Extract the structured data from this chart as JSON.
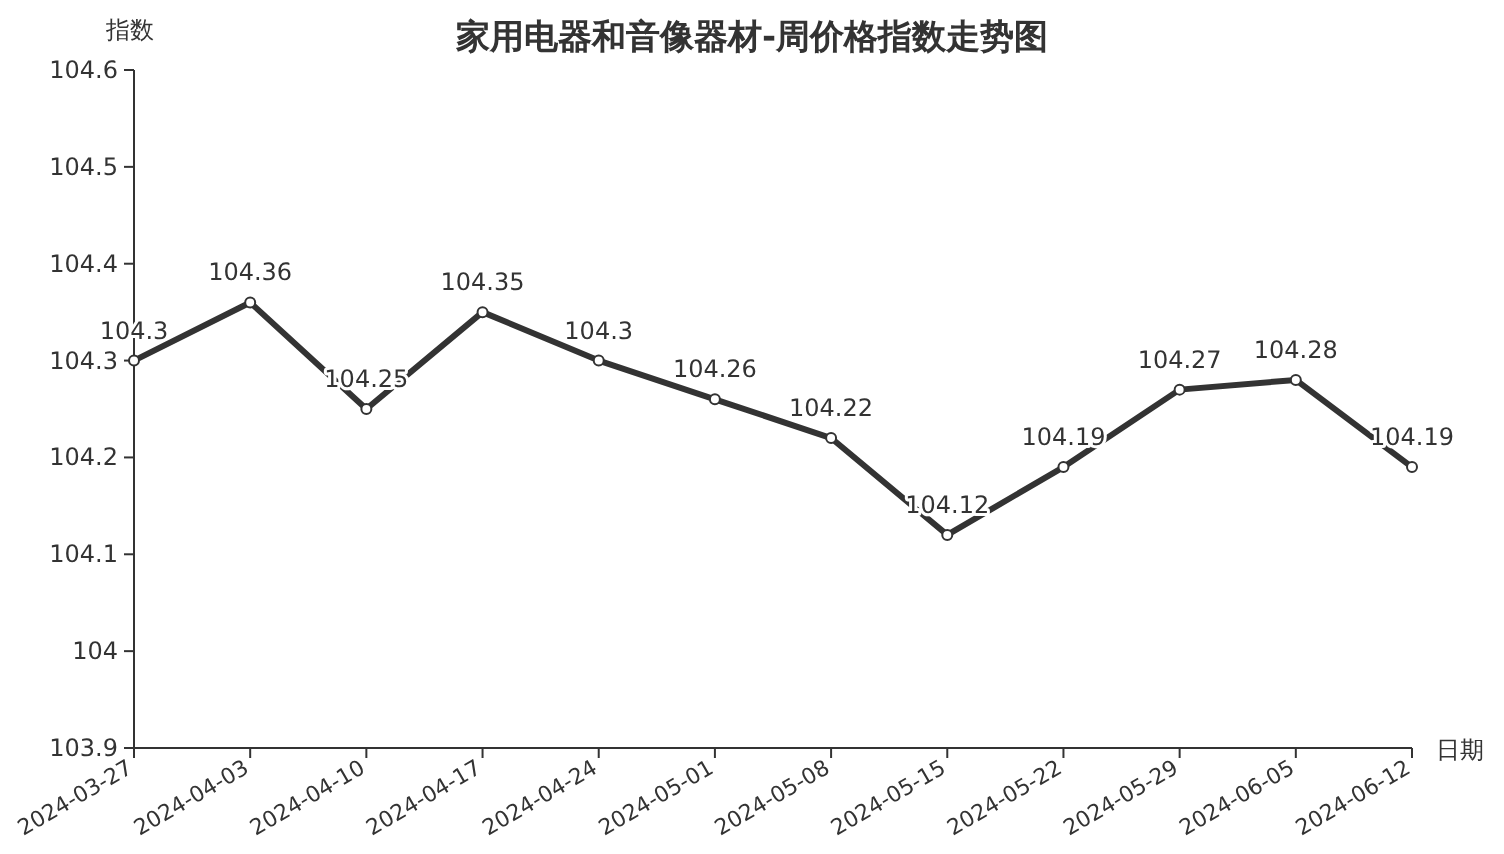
{
  "chart_data": {
    "type": "line",
    "title": "家用电器和音像器材-周价格指数走势图",
    "xlabel": "日期",
    "ylabel": "指数",
    "categories": [
      "2024-03-27",
      "2024-04-03",
      "2024-04-10",
      "2024-04-17",
      "2024-04-24",
      "2024-05-01",
      "2024-05-08",
      "2024-05-15",
      "2024-05-22",
      "2024-05-29",
      "2024-06-05",
      "2024-06-12"
    ],
    "series": [
      {
        "color": "#333333",
        "values": [
          104.3,
          104.36,
          104.25,
          104.35,
          104.3,
          104.26,
          104.22,
          104.12,
          104.19,
          104.27,
          104.28,
          104.19
        ]
      }
    ],
    "ylim": [
      103.9,
      104.6
    ],
    "yticks": [
      103.9,
      104,
      104.1,
      104.2,
      104.3,
      104.4,
      104.5,
      104.6
    ],
    "data_labels": true,
    "marker": "circle",
    "line_style": "solid",
    "grid": false
  }
}
